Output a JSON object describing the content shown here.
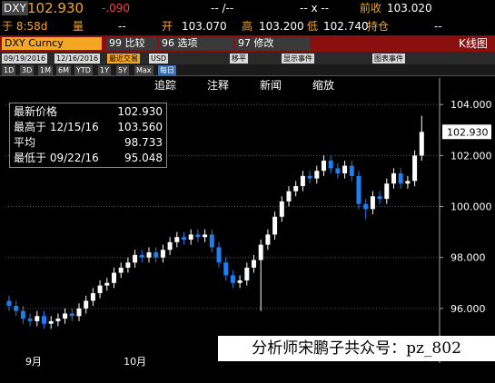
{
  "header": {
    "ticker": "DXY",
    "last": "102.930",
    "change": "-.090",
    "bidask": "-- /--",
    "size": "-- x --",
    "prev_close_label": "前收",
    "prev_close": "103.020",
    "time": "于 8:58d",
    "volume_label": "量",
    "volume": "--",
    "open_label": "开",
    "open": "103.070",
    "high_label": "高",
    "high": "103.200",
    "low_label": "低",
    "low": "102.740",
    "oi_label": "持仓",
    "oi": "--"
  },
  "menu": {
    "security": "DXY Curncy",
    "compare": "99 比较",
    "options": "96 选项",
    "edit": "97 修改",
    "chart_type": "K线图"
  },
  "toolbar": {
    "start": "09/19/2016",
    "end": "12/16/2016",
    "last_trade": "最近交易",
    "currency": "USD",
    "ranges": [
      "1D",
      "3D",
      "1M",
      "6M",
      "YTD",
      "1Y",
      "5Y",
      "Max"
    ],
    "period": "每日",
    "moving_avg": "移平",
    "events": "显示事件",
    "chart_events": "图表事件"
  },
  "actions": [
    "追踪",
    "注释",
    "新闻",
    "缩放"
  ],
  "legend": {
    "last_label": "最新价格",
    "last_value": "102.930",
    "high_label": "最高于 12/15/16",
    "high_value": "103.560",
    "avg_label": "平均",
    "avg_value": "98.733",
    "low_label": "最低于 09/22/16",
    "low_value": "95.048"
  },
  "watermark": "分析师宋鹏子共众号：pz_802",
  "chart_data": {
    "type": "candlestick",
    "up_color": "#ffffff",
    "down_color": "#1e7ff0",
    "ylim": [
      94,
      104.4
    ],
    "yticks": [
      {
        "value": 96,
        "label": "96.000"
      },
      {
        "value": 98,
        "label": "98.000"
      },
      {
        "value": 100,
        "label": "100.000"
      },
      {
        "value": 102,
        "label": "102.000"
      },
      {
        "value": 104,
        "label": "104.000"
      }
    ],
    "xticks": [
      {
        "value": 3.5,
        "label": "9月"
      },
      {
        "value": 18,
        "label": "10月"
      }
    ],
    "grid": true,
    "open": [
      96.3,
      96.1,
      95.9,
      95.6,
      95.5,
      95.7,
      95.4,
      95.5,
      95.6,
      95.8,
      95.7,
      96.0,
      96.3,
      96.6,
      96.9,
      97.0,
      97.4,
      97.6,
      97.8,
      98.1,
      98.0,
      98.2,
      98.0,
      98.3,
      98.6,
      98.8,
      98.7,
      98.9,
      98.8,
      98.9,
      98.4,
      97.8,
      97.3,
      97.0,
      97.1,
      97.6,
      97.9,
      98.5,
      98.9,
      99.6,
      100.2,
      100.6,
      100.8,
      101.2,
      101.1,
      101.4,
      101.8,
      101.5,
      101.3,
      101.6,
      101.2,
      100.1,
      99.9,
      100.4,
      100.3,
      100.9,
      101.3,
      100.9,
      101.0,
      102.0
    ],
    "high": [
      96.5,
      96.3,
      96.1,
      95.8,
      95.9,
      95.9,
      95.7,
      95.8,
      96.0,
      96.0,
      96.2,
      96.5,
      96.8,
      97.1,
      97.2,
      97.6,
      97.8,
      98.0,
      98.3,
      98.3,
      98.4,
      98.4,
      98.5,
      98.8,
      99.0,
      99.0,
      99.1,
      99.1,
      99.1,
      99.1,
      98.6,
      98.0,
      97.5,
      97.3,
      97.8,
      98.1,
      98.7,
      99.1,
      99.8,
      100.4,
      100.8,
      101.0,
      101.4,
      101.4,
      101.6,
      102.0,
      102.0,
      101.7,
      101.8,
      101.8,
      101.4,
      100.3,
      100.6,
      100.6,
      101.1,
      101.5,
      101.5,
      101.2,
      102.2,
      103.56
    ],
    "low": [
      95.9,
      95.7,
      95.4,
      95.3,
      95.3,
      95.2,
      95.2,
      95.3,
      95.4,
      95.5,
      95.5,
      95.8,
      96.1,
      96.4,
      96.7,
      96.8,
      97.2,
      97.4,
      97.6,
      97.8,
      97.8,
      97.8,
      97.8,
      98.1,
      98.4,
      98.5,
      98.5,
      98.6,
      98.6,
      98.2,
      97.6,
      97.1,
      96.8,
      96.8,
      96.9,
      97.4,
      95.9,
      98.3,
      98.7,
      99.4,
      100.0,
      100.4,
      100.6,
      100.9,
      100.9,
      101.2,
      101.3,
      101.1,
      101.1,
      101.0,
      99.9,
      99.5,
      99.7,
      100.1,
      100.1,
      100.7,
      100.7,
      100.7,
      100.8,
      101.8
    ],
    "close": [
      96.1,
      95.9,
      95.6,
      95.5,
      95.7,
      95.4,
      95.5,
      95.6,
      95.8,
      95.7,
      96.0,
      96.3,
      96.6,
      96.9,
      97.0,
      97.4,
      97.6,
      97.8,
      98.1,
      98.0,
      98.2,
      98.0,
      98.3,
      98.6,
      98.8,
      98.7,
      98.9,
      98.8,
      98.9,
      98.4,
      97.8,
      97.3,
      97.0,
      97.1,
      97.6,
      97.9,
      98.5,
      98.9,
      99.6,
      100.2,
      100.6,
      100.8,
      101.2,
      101.1,
      101.4,
      101.8,
      101.5,
      101.3,
      101.6,
      101.2,
      100.1,
      99.9,
      100.4,
      100.3,
      100.9,
      101.3,
      100.9,
      101.0,
      102.0,
      102.93
    ]
  }
}
